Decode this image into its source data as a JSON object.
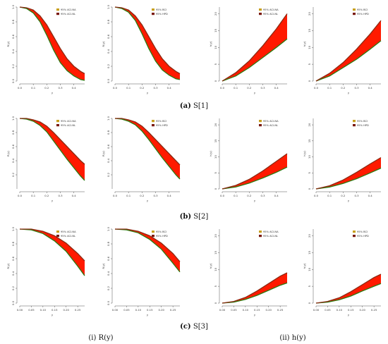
{
  "captions": {
    "row_a": {
      "letter": "(a)",
      "name": "S[1]"
    },
    "row_b": {
      "letter": "(b)",
      "name": "S[2]"
    },
    "row_c": {
      "letter": "(c)",
      "name": "S[3]"
    },
    "col_i": "(i) R(y)",
    "col_ii": "(ii) h(y)"
  },
  "colors": {
    "band": "#ff1a00",
    "lower": "#2a7a10",
    "upper": "#8a2a12",
    "legend_na": "#c8a020",
    "legend_nl": "#7a1a10",
    "legend_bci": "#c8a020",
    "legend_hpd": "#7a1a10"
  },
  "chart_data": [
    {
      "id": "a1",
      "type": "area",
      "row": "a",
      "func": "R",
      "xlabel": "y",
      "ylabel": "R(y)",
      "xlim": [
        0,
        0.48
      ],
      "ylim": [
        0,
        1
      ],
      "xticks": [
        "0.0",
        "0.1",
        "0.2",
        "0.3",
        "0.4"
      ],
      "yticks": [
        "0.0",
        "0.2",
        "0.4",
        "0.6",
        "0.8",
        "1.0"
      ],
      "legend": [
        "95% ACI-NA",
        "95% ACI-NL"
      ],
      "x": [
        0,
        0.05,
        0.1,
        0.15,
        0.2,
        0.25,
        0.3,
        0.35,
        0.4,
        0.45,
        0.48
      ],
      "lower": [
        1,
        0.98,
        0.92,
        0.8,
        0.62,
        0.42,
        0.25,
        0.14,
        0.07,
        0.02,
        0.01
      ],
      "upper": [
        1,
        0.99,
        0.96,
        0.88,
        0.76,
        0.6,
        0.44,
        0.3,
        0.2,
        0.13,
        0.1
      ]
    },
    {
      "id": "a2",
      "type": "area",
      "row": "a",
      "func": "R",
      "xlabel": "y",
      "ylabel": "R(y)",
      "xlim": [
        0,
        0.48
      ],
      "ylim": [
        0,
        1
      ],
      "xticks": [
        "0.0",
        "0.1",
        "0.2",
        "0.3",
        "0.4"
      ],
      "yticks": [
        "0.0",
        "0.2",
        "0.4",
        "0.6",
        "0.8",
        "1.0"
      ],
      "legend": [
        "95% BCI",
        "95% HPD"
      ],
      "x": [
        0,
        0.05,
        0.1,
        0.15,
        0.2,
        0.25,
        0.3,
        0.35,
        0.4,
        0.45,
        0.48
      ],
      "lower": [
        1,
        0.98,
        0.93,
        0.82,
        0.64,
        0.44,
        0.27,
        0.15,
        0.08,
        0.03,
        0.02
      ],
      "upper": [
        1,
        0.99,
        0.96,
        0.88,
        0.76,
        0.6,
        0.44,
        0.3,
        0.2,
        0.13,
        0.1
      ]
    },
    {
      "id": "a3",
      "type": "area",
      "row": "a",
      "func": "h",
      "xlabel": "y",
      "ylabel": "h(y)",
      "xlim": [
        0,
        0.48
      ],
      "ylim": [
        0,
        22
      ],
      "xticks": [
        "0.0",
        "0.1",
        "0.2",
        "0.3",
        "0.4"
      ],
      "yticks": [
        "0",
        "5",
        "10",
        "15",
        "20"
      ],
      "legend": [
        "95% ACI-NA",
        "95% ACI-NL"
      ],
      "x": [
        0,
        0.1,
        0.2,
        0.3,
        0.4,
        0.48
      ],
      "lower": [
        0,
        1.5,
        4,
        7,
        10,
        12.5
      ],
      "upper": [
        0,
        2.5,
        6,
        10.5,
        15.5,
        20
      ]
    },
    {
      "id": "a4",
      "type": "area",
      "row": "a",
      "func": "h",
      "xlabel": "y",
      "ylabel": "h(y)",
      "xlim": [
        0,
        0.48
      ],
      "ylim": [
        0,
        22
      ],
      "xticks": [
        "0.0",
        "0.1",
        "0.2",
        "0.3",
        "0.4"
      ],
      "yticks": [
        "0",
        "5",
        "10",
        "15",
        "20"
      ],
      "legend": [
        "95% BCI",
        "95% HPD"
      ],
      "x": [
        0,
        0.1,
        0.2,
        0.3,
        0.4,
        0.48
      ],
      "lower": [
        0,
        1.5,
        4,
        6.5,
        9.5,
        12
      ],
      "upper": [
        0,
        2.3,
        5.5,
        9.5,
        14,
        18
      ]
    },
    {
      "id": "b1",
      "type": "area",
      "row": "b",
      "func": "R",
      "xlabel": "y",
      "ylabel": "R(y)",
      "xlim": [
        0,
        0.48
      ],
      "ylim": [
        0,
        1
      ],
      "xticks": [
        "0.0",
        "0.1",
        "0.2",
        "0.3",
        "0.4"
      ],
      "yticks": [
        "0.2",
        "0.4",
        "0.6",
        "0.8",
        "1.0"
      ],
      "legend": [
        "95% ACI-NA",
        "95% ACI-NL"
      ],
      "x": [
        0,
        0.05,
        0.1,
        0.15,
        0.2,
        0.25,
        0.3,
        0.35,
        0.4,
        0.45,
        0.48
      ],
      "lower": [
        1,
        0.99,
        0.96,
        0.9,
        0.81,
        0.68,
        0.55,
        0.42,
        0.3,
        0.18,
        0.12
      ],
      "upper": [
        1,
        1,
        0.98,
        0.95,
        0.89,
        0.8,
        0.7,
        0.6,
        0.5,
        0.4,
        0.35
      ]
    },
    {
      "id": "b2",
      "type": "area",
      "row": "b",
      "func": "R",
      "xlabel": "y",
      "ylabel": "R(y)",
      "xlim": [
        0,
        0.48
      ],
      "ylim": [
        0,
        1
      ],
      "xticks": [
        "0.0",
        "0.1",
        "0.2",
        "0.3",
        "0.4"
      ],
      "yticks": [
        "0.2",
        "0.4",
        "0.6",
        "0.8",
        "1.0"
      ],
      "legend": [
        "95% BCI",
        "95% HPD"
      ],
      "x": [
        0,
        0.05,
        0.1,
        0.15,
        0.2,
        0.25,
        0.3,
        0.35,
        0.4,
        0.45,
        0.48
      ],
      "lower": [
        1,
        0.99,
        0.96,
        0.91,
        0.82,
        0.7,
        0.57,
        0.44,
        0.32,
        0.2,
        0.14
      ],
      "upper": [
        1,
        1,
        0.98,
        0.95,
        0.89,
        0.8,
        0.7,
        0.6,
        0.5,
        0.4,
        0.34
      ]
    },
    {
      "id": "b3",
      "type": "area",
      "row": "b",
      "func": "h",
      "xlabel": "y",
      "ylabel": "h(y)",
      "xlim": [
        0,
        0.48
      ],
      "ylim": [
        0,
        22
      ],
      "xticks": [
        "0.0",
        "0.1",
        "0.2",
        "0.3",
        "0.4"
      ],
      "yticks": [
        "0",
        "5",
        "10",
        "15",
        "20"
      ],
      "legend": [
        "95% ACI-NA",
        "95% ACI-NL"
      ],
      "x": [
        0,
        0.1,
        0.2,
        0.3,
        0.4,
        0.48
      ],
      "lower": [
        0,
        0.6,
        1.8,
        3.4,
        5.2,
        6.8
      ],
      "upper": [
        0,
        1.1,
        3,
        5.6,
        8.6,
        11
      ]
    },
    {
      "id": "b4",
      "type": "area",
      "row": "b",
      "func": "h",
      "xlabel": "y",
      "ylabel": "h(y)",
      "xlim": [
        0,
        0.48
      ],
      "ylim": [
        0,
        22
      ],
      "xticks": [
        "0.0",
        "0.1",
        "0.2",
        "0.3",
        "0.4"
      ],
      "yticks": [
        "0",
        "5",
        "10",
        "15",
        "20"
      ],
      "legend": [
        "95% BCI",
        "95% HPD"
      ],
      "x": [
        0,
        0.1,
        0.2,
        0.3,
        0.4,
        0.48
      ],
      "lower": [
        0,
        0.6,
        1.7,
        3.2,
        5,
        6.5
      ],
      "upper": [
        0,
        1,
        2.8,
        5.2,
        7.8,
        9.8
      ]
    },
    {
      "id": "c1",
      "type": "area",
      "row": "c",
      "func": "R",
      "xlabel": "y",
      "ylabel": "R(y)",
      "xlim": [
        0,
        0.28
      ],
      "ylim": [
        0,
        1
      ],
      "xticks": [
        "0.00",
        "0.05",
        "0.10",
        "0.15",
        "0.20",
        "0.25"
      ],
      "yticks": [
        "0.0",
        "0.2",
        "0.4",
        "0.6",
        "0.8",
        "1.0"
      ],
      "legend": [
        "95% ACI-NA",
        "95% ACI-NL"
      ],
      "x": [
        0,
        0.05,
        0.1,
        0.15,
        0.2,
        0.25,
        0.28
      ],
      "lower": [
        1,
        0.99,
        0.94,
        0.84,
        0.7,
        0.5,
        0.37
      ],
      "upper": [
        1,
        1,
        0.97,
        0.91,
        0.81,
        0.67,
        0.57
      ]
    },
    {
      "id": "c2",
      "type": "area",
      "row": "c",
      "func": "R",
      "xlabel": "y",
      "ylabel": "R(y)",
      "xlim": [
        0,
        0.28
      ],
      "ylim": [
        0,
        1
      ],
      "xticks": [
        "0.00",
        "0.05",
        "0.10",
        "0.15",
        "0.20",
        "0.25"
      ],
      "yticks": [
        "0.0",
        "0.2",
        "0.4",
        "0.6",
        "0.8",
        "1.0"
      ],
      "legend": [
        "95% BCI",
        "95% HPD"
      ],
      "x": [
        0,
        0.05,
        0.1,
        0.15,
        0.2,
        0.25,
        0.28
      ],
      "lower": [
        1,
        0.99,
        0.95,
        0.86,
        0.73,
        0.54,
        0.42
      ],
      "upper": [
        1,
        1,
        0.97,
        0.91,
        0.81,
        0.67,
        0.56
      ]
    },
    {
      "id": "c3",
      "type": "area",
      "row": "c",
      "func": "h",
      "xlabel": "y",
      "ylabel": "h(y)",
      "xlim": [
        0,
        0.28
      ],
      "ylim": [
        0,
        22
      ],
      "xticks": [
        "0.00",
        "0.05",
        "0.10",
        "0.15",
        "0.20",
        "0.25"
      ],
      "yticks": [
        "0",
        "5",
        "10",
        "15",
        "20"
      ],
      "legend": [
        "95% ACI-NA",
        "95% ACI-NL"
      ],
      "x": [
        0,
        0.05,
        0.1,
        0.15,
        0.2,
        0.25,
        0.28
      ],
      "lower": [
        0,
        0.3,
        1.1,
        2.3,
        3.8,
        5.3,
        6
      ],
      "upper": [
        0,
        0.5,
        1.7,
        3.6,
        5.8,
        8,
        9
      ]
    },
    {
      "id": "c4",
      "type": "area",
      "row": "c",
      "func": "h",
      "xlabel": "y",
      "ylabel": "h(y)",
      "xlim": [
        0,
        0.28
      ],
      "ylim": [
        0,
        22
      ],
      "xticks": [
        "0.00",
        "0.05",
        "0.10",
        "0.15",
        "0.20",
        "0.25"
      ],
      "yticks": [
        "0",
        "5",
        "10",
        "15",
        "20"
      ],
      "legend": [
        "95% BCI",
        "95% HPD"
      ],
      "x": [
        0,
        0.05,
        0.1,
        0.15,
        0.2,
        0.25,
        0.28
      ],
      "lower": [
        0,
        0.3,
        1,
        2.1,
        3.6,
        5,
        5.8
      ],
      "upper": [
        0,
        0.5,
        1.6,
        3.4,
        5.5,
        7.6,
        8.6
      ]
    }
  ]
}
